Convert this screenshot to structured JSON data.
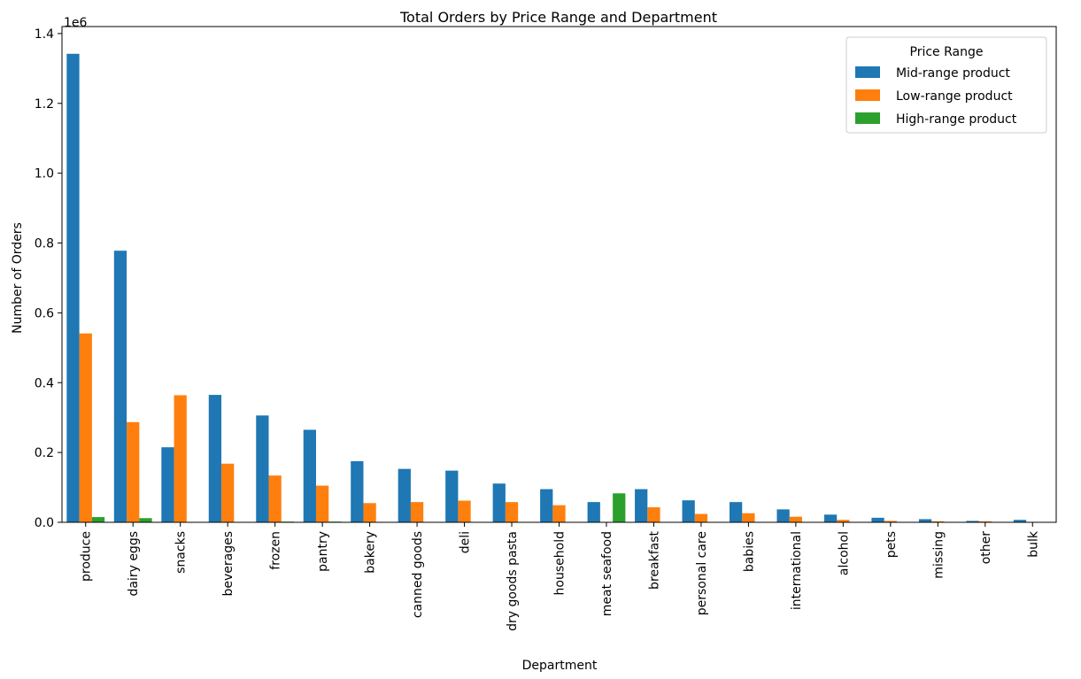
{
  "chart_data": {
    "type": "bar",
    "title": "Total Orders by Price Range and Department",
    "xlabel": "Department",
    "ylabel": "Number of Orders",
    "y_offset_text": "1e6",
    "ylim": [
      0,
      1.42
    ],
    "yticks": [
      "0.0",
      "0.2",
      "0.4",
      "0.6",
      "0.8",
      "1.0",
      "1.2",
      "1.4"
    ],
    "grid": false,
    "legend_position": "top-right",
    "legend_title": "Price Range",
    "categories": [
      "produce",
      "dairy eggs",
      "snacks",
      "beverages",
      "frozen",
      "pantry",
      "bakery",
      "canned goods",
      "deli",
      "dry goods pasta",
      "household",
      "meat seafood",
      "breakfast",
      "personal care",
      "babies",
      "international",
      "alcohol",
      "pets",
      "missing",
      "other",
      "bulk"
    ],
    "series": [
      {
        "name": "Mid-range product",
        "color": "#1f77b4",
        "values": [
          1.342,
          0.778,
          0.215,
          0.365,
          0.306,
          0.265,
          0.175,
          0.153,
          0.148,
          0.111,
          0.095,
          0.058,
          0.095,
          0.063,
          0.058,
          0.037,
          0.022,
          0.013,
          0.009,
          0.004,
          0.007
        ]
      },
      {
        "name": "Low-range product",
        "color": "#ff7f0e",
        "values": [
          0.541,
          0.287,
          0.364,
          0.168,
          0.134,
          0.105,
          0.055,
          0.058,
          0.062,
          0.058,
          0.049,
          0.0,
          0.043,
          0.024,
          0.026,
          0.016,
          0.007,
          0.004,
          0.003,
          0.003,
          0.0
        ]
      },
      {
        "name": "High-range product",
        "color": "#2ca02c",
        "values": [
          0.015,
          0.012,
          0.0,
          0.0,
          0.002,
          0.002,
          0.0,
          0.0,
          0.0,
          0.0,
          0.0,
          0.083,
          0.0,
          0.0,
          0.0,
          0.0,
          0.0,
          0.0,
          0.0,
          0.0,
          0.0
        ]
      }
    ]
  }
}
